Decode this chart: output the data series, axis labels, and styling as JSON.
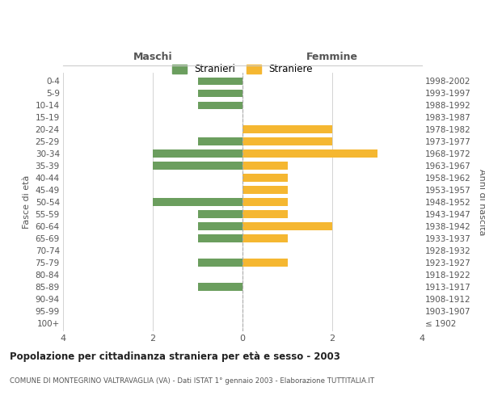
{
  "age_groups": [
    "100+",
    "95-99",
    "90-94",
    "85-89",
    "80-84",
    "75-79",
    "70-74",
    "65-69",
    "60-64",
    "55-59",
    "50-54",
    "45-49",
    "40-44",
    "35-39",
    "30-34",
    "25-29",
    "20-24",
    "15-19",
    "10-14",
    "5-9",
    "0-4"
  ],
  "birth_years": [
    "≤ 1902",
    "1903-1907",
    "1908-1912",
    "1913-1917",
    "1918-1922",
    "1923-1927",
    "1928-1932",
    "1933-1937",
    "1938-1942",
    "1943-1947",
    "1948-1952",
    "1953-1957",
    "1958-1962",
    "1963-1967",
    "1968-1972",
    "1973-1977",
    "1978-1982",
    "1983-1987",
    "1988-1992",
    "1993-1997",
    "1998-2002"
  ],
  "maschi": [
    0,
    0,
    0,
    1,
    0,
    1,
    0,
    1,
    1,
    1,
    2,
    0,
    0,
    2,
    2,
    1,
    0,
    0,
    1,
    1,
    1
  ],
  "femmine": [
    0,
    0,
    0,
    0,
    0,
    1,
    0,
    1,
    2,
    1,
    1,
    1,
    1,
    1,
    3,
    2,
    2,
    0,
    0,
    0,
    0
  ],
  "color_maschi": "#6b9e5e",
  "color_femmine": "#f5b731",
  "title": "Popolazione per cittadinanza straniera per età e sesso - 2003",
  "subtitle": "COMUNE DI MONTEGRINO VALTRAVAGLIA (VA) - Dati ISTAT 1° gennaio 2003 - Elaborazione TUTTITALIA.IT",
  "xlabel_left": "Maschi",
  "xlabel_right": "Femmine",
  "ylabel_left": "Fasce di età",
  "ylabel_right": "Anni di nascita",
  "legend_maschi": "Stranieri",
  "legend_femmine": "Straniere",
  "xlim": 4,
  "background_color": "#ffffff",
  "grid_color": "#cccccc"
}
